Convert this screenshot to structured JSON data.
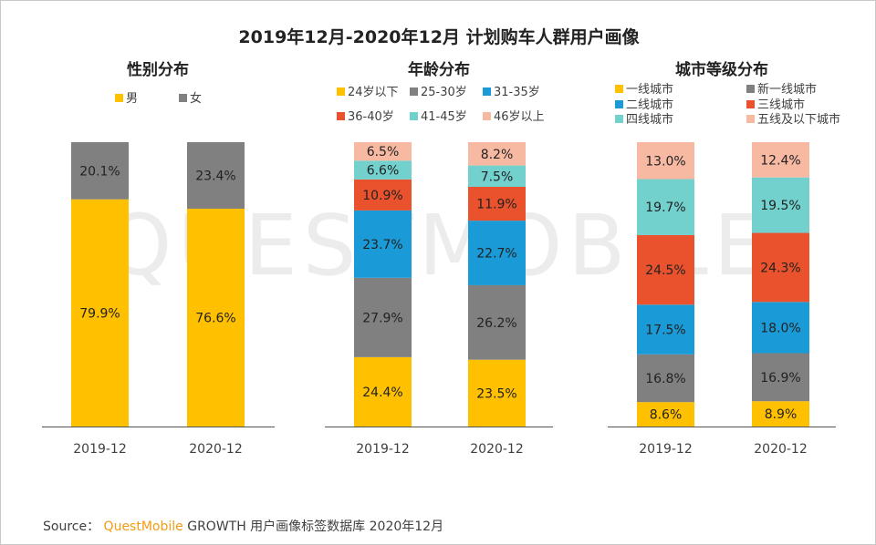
{
  "title": "2019年12月-2020年12月 计划购车人群用户画像",
  "watermark": "QUESTMOBILE",
  "source": {
    "label": "Source：",
    "brand": "QuestMobile",
    "text": "GROWTH 用户画像标签数据库 2020年12月"
  },
  "colors": {
    "yellow": "#FFC000",
    "gray": "#808080",
    "blue": "#1A9BD7",
    "red": "#E9522C",
    "teal": "#72D1CD",
    "peach": "#F8B9A3"
  },
  "chart_data": [
    {
      "type": "bar",
      "stacked": true,
      "title": "性别分布",
      "categories": [
        "2019-12",
        "2020-12"
      ],
      "legend_position": "top",
      "series": [
        {
          "name": "男",
          "color": "#FFC000",
          "values": [
            79.9,
            76.6
          ],
          "labels": [
            "79.9%",
            "76.6%"
          ]
        },
        {
          "name": "女",
          "color": "#808080",
          "values": [
            20.1,
            23.4
          ],
          "labels": [
            "20.1%",
            "23.4%"
          ]
        }
      ],
      "ylim": [
        0,
        100
      ]
    },
    {
      "type": "bar",
      "stacked": true,
      "title": "年龄分布",
      "categories": [
        "2019-12",
        "2020-12"
      ],
      "legend_position": "top",
      "series": [
        {
          "name": "24岁以下",
          "color": "#FFC000",
          "values": [
            24.4,
            23.5
          ],
          "labels": [
            "24.4%",
            "23.5%"
          ]
        },
        {
          "name": "25-30岁",
          "color": "#808080",
          "values": [
            27.9,
            26.2
          ],
          "labels": [
            "27.9%",
            "26.2%"
          ]
        },
        {
          "name": "31-35岁",
          "color": "#1A9BD7",
          "values": [
            23.7,
            22.7
          ],
          "labels": [
            "23.7%",
            "22.7%"
          ]
        },
        {
          "name": "36-40岁",
          "color": "#E9522C",
          "values": [
            10.9,
            11.9
          ],
          "labels": [
            "10.9%",
            "11.9%"
          ]
        },
        {
          "name": "41-45岁",
          "color": "#72D1CD",
          "values": [
            6.6,
            7.5
          ],
          "labels": [
            "6.6%",
            "7.5%"
          ]
        },
        {
          "name": "46岁以上",
          "color": "#F8B9A3",
          "values": [
            6.5,
            8.2
          ],
          "labels": [
            "6.5%",
            "8.2%"
          ]
        }
      ],
      "ylim": [
        0,
        100
      ]
    },
    {
      "type": "bar",
      "stacked": true,
      "title": "城市等级分布",
      "categories": [
        "2019-12",
        "2020-12"
      ],
      "legend_position": "top",
      "series": [
        {
          "name": "一线城市",
          "color": "#FFC000",
          "values": [
            8.6,
            8.9
          ],
          "labels": [
            "8.6%",
            "8.9%"
          ]
        },
        {
          "name": "新一线城市",
          "color": "#808080",
          "values": [
            16.8,
            16.9
          ],
          "labels": [
            "16.8%",
            "16.9%"
          ]
        },
        {
          "name": "二线城市",
          "color": "#1A9BD7",
          "values": [
            17.5,
            18.0
          ],
          "labels": [
            "17.5%",
            "18.0%"
          ]
        },
        {
          "name": "三线城市",
          "color": "#E9522C",
          "values": [
            24.5,
            24.3
          ],
          "labels": [
            "24.5%",
            "24.3%"
          ]
        },
        {
          "name": "四线城市",
          "color": "#72D1CD",
          "values": [
            19.7,
            19.5
          ],
          "labels": [
            "19.7%",
            "19.5%"
          ]
        },
        {
          "name": "五线及以下城市",
          "color": "#F8B9A3",
          "values": [
            13.0,
            12.4
          ],
          "labels": [
            "13.0%",
            "12.4%"
          ]
        }
      ],
      "ylim": [
        0,
        100
      ]
    }
  ]
}
